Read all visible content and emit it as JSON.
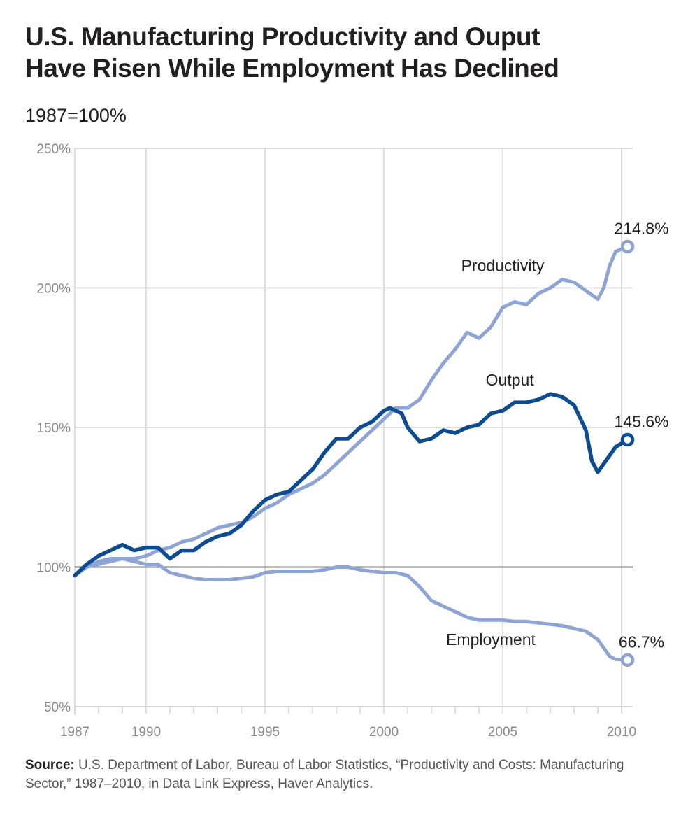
{
  "title_lines": [
    "U.S. Manufacturing Productivity and Ouput",
    "Have Risen While Employment Has Declined"
  ],
  "subtitle": "1987=100%",
  "source_label": "Source:",
  "source_text": "U.S. Department of Labor, Bureau of Labor Statistics, “Productivity and Costs: Manufacturing Sector,” 1987–2010, in Data Link Express, Haver Analytics.",
  "chart_data": {
    "type": "line",
    "title": "U.S. Manufacturing Productivity and Ouput Have Risen While Employment Has Declined",
    "ylabel": "1987=100%",
    "xlabel": "",
    "xlim": [
      1987,
      2011
    ],
    "ylim": [
      50,
      250
    ],
    "x_ticks": [
      1987,
      1990,
      1995,
      2000,
      2005,
      2010
    ],
    "y_ticks": [
      50,
      100,
      150,
      200,
      250
    ],
    "y_tick_labels": [
      "50%",
      "100%",
      "150%",
      "200%",
      "250%"
    ],
    "reference_line": 100,
    "grid": true,
    "colors": {
      "light": "#8ea4d4",
      "dark": "#0e4c92",
      "grid": "#d3d3d3",
      "reference": "#555555",
      "axis_text": "#888888"
    },
    "series": [
      {
        "name": "Productivity",
        "color": "#8ea4d4",
        "end_label": "214.8%",
        "x": [
          1987.0,
          1987.5,
          1988.0,
          1988.5,
          1989.0,
          1989.5,
          1990.0,
          1990.5,
          1991.0,
          1991.5,
          1992.0,
          1992.5,
          1993.0,
          1993.5,
          1994.0,
          1994.5,
          1995.0,
          1995.5,
          1996.0,
          1996.5,
          1997.0,
          1997.5,
          1998.0,
          1998.5,
          1999.0,
          1999.5,
          2000.0,
          2000.5,
          2001.0,
          2001.5,
          2002.0,
          2002.5,
          2003.0,
          2003.5,
          2004.0,
          2004.5,
          2005.0,
          2005.5,
          2006.0,
          2006.5,
          2007.0,
          2007.5,
          2008.0,
          2008.5,
          2009.0,
          2009.25,
          2009.5,
          2009.75,
          2010.25
        ],
        "values": [
          97,
          100,
          101,
          102,
          103,
          103,
          104,
          106,
          107,
          109,
          110,
          112,
          114,
          115,
          116,
          118,
          121,
          123,
          126,
          128,
          130,
          133,
          137,
          141,
          145,
          149,
          153,
          157,
          157,
          160,
          167,
          173,
          178,
          184,
          182,
          186,
          193,
          195,
          194,
          198,
          200,
          203,
          202,
          199,
          196,
          200,
          208,
          213,
          214.8
        ]
      },
      {
        "name": "Output",
        "color": "#0e4c92",
        "end_label": "145.6%",
        "x": [
          1987.0,
          1987.5,
          1988.0,
          1988.5,
          1989.0,
          1989.5,
          1990.0,
          1990.5,
          1991.0,
          1991.5,
          1992.0,
          1992.5,
          1993.0,
          1993.5,
          1994.0,
          1994.5,
          1995.0,
          1995.5,
          1996.0,
          1996.5,
          1997.0,
          1997.5,
          1998.0,
          1998.5,
          1999.0,
          1999.5,
          2000.0,
          2000.25,
          2000.5,
          2000.75,
          2001.0,
          2001.5,
          2002.0,
          2002.5,
          2003.0,
          2003.5,
          2004.0,
          2004.5,
          2005.0,
          2005.5,
          2006.0,
          2006.5,
          2007.0,
          2007.5,
          2008.0,
          2008.5,
          2008.75,
          2009.0,
          2009.25,
          2009.5,
          2009.75,
          2010.25
        ],
        "values": [
          97,
          101,
          104,
          106,
          108,
          106,
          107,
          107,
          103,
          106,
          106,
          109,
          111,
          112,
          115,
          120,
          124,
          126,
          127,
          131,
          135,
          141,
          146,
          146,
          150,
          152,
          156,
          157,
          156,
          155,
          150,
          145,
          146,
          149,
          148,
          150,
          151,
          155,
          156,
          159,
          159,
          160,
          162,
          161,
          158,
          149,
          138,
          134,
          137,
          140,
          143,
          145.6
        ]
      },
      {
        "name": "Employment",
        "color": "#8ea4d4",
        "end_label": "66.7%",
        "x": [
          1987.0,
          1987.5,
          1988.0,
          1988.5,
          1989.0,
          1989.5,
          1990.0,
          1990.5,
          1991.0,
          1991.5,
          1992.0,
          1992.5,
          1993.0,
          1993.5,
          1994.0,
          1994.5,
          1995.0,
          1995.5,
          1996.0,
          1996.5,
          1997.0,
          1997.5,
          1998.0,
          1998.5,
          1999.0,
          1999.5,
          2000.0,
          2000.5,
          2001.0,
          2001.5,
          2002.0,
          2002.5,
          2003.0,
          2003.5,
          2004.0,
          2004.5,
          2005.0,
          2005.5,
          2006.0,
          2006.5,
          2007.0,
          2007.5,
          2008.0,
          2008.5,
          2009.0,
          2009.25,
          2009.5,
          2009.75,
          2010.25
        ],
        "values": [
          97,
          100,
          102,
          103,
          103,
          102,
          101,
          101,
          98,
          97,
          96,
          95.5,
          95.5,
          95.5,
          96,
          96.5,
          98,
          98.5,
          98.5,
          98.5,
          98.5,
          99,
          100,
          100,
          99,
          98.5,
          98,
          98,
          97,
          93,
          88,
          86,
          84,
          82,
          81,
          81,
          81,
          80.5,
          80.5,
          80,
          79.5,
          79,
          78,
          77,
          74,
          71,
          68,
          67,
          66.7
        ]
      }
    ],
    "annotations": [
      {
        "text": "Productivity",
        "x": 2005.0,
        "y": 206
      },
      {
        "text": "Output",
        "x": 2005.3,
        "y": 165
      },
      {
        "text": "Employment",
        "x": 2004.5,
        "y": 72
      }
    ]
  }
}
